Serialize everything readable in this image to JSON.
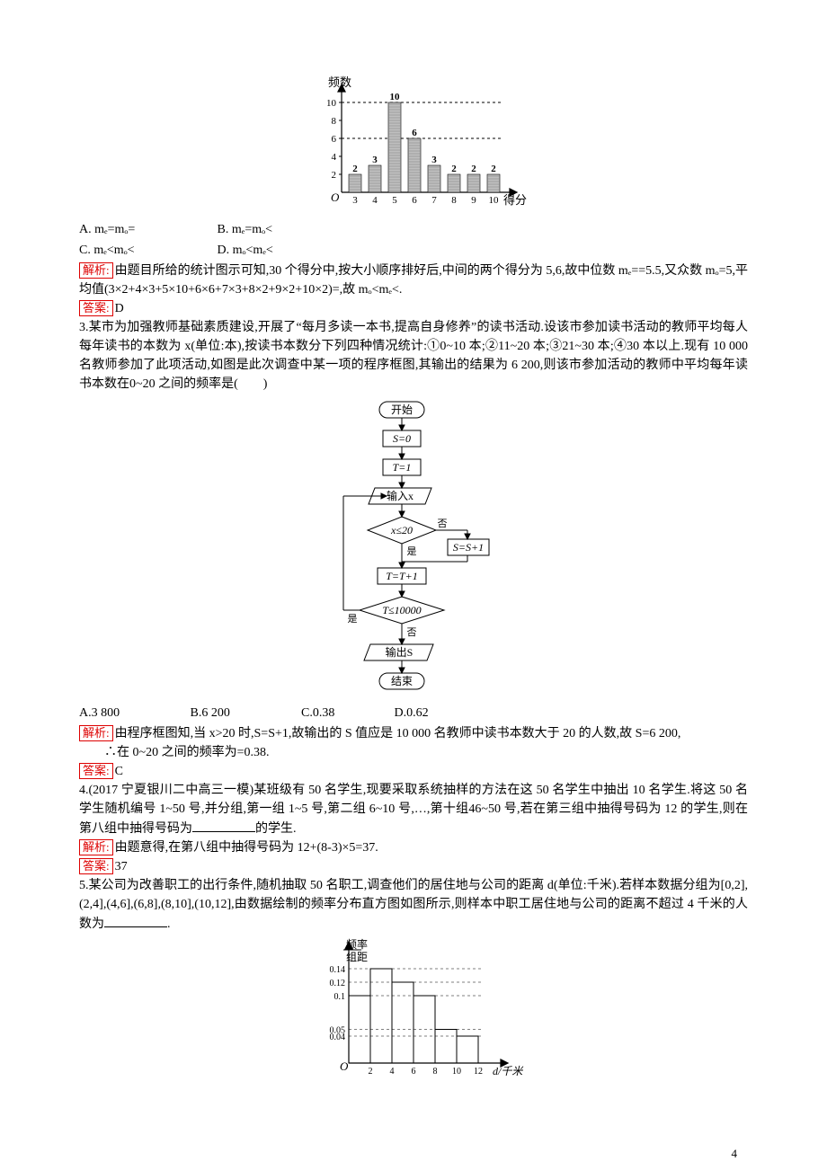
{
  "q2": {
    "chart": {
      "title_y": "频数",
      "title_x": "得分",
      "categories": [
        "3",
        "4",
        "5",
        "6",
        "7",
        "8",
        "9",
        "10"
      ],
      "values": [
        2,
        3,
        10,
        6,
        3,
        2,
        2,
        2
      ],
      "top_labels": [
        "2",
        "3",
        "10",
        "6",
        "3",
        "2",
        "2",
        "2"
      ],
      "yticks": [
        "2",
        "4",
        "6",
        "8",
        "10"
      ],
      "dashed_levels": [
        10,
        6
      ],
      "bar_fill": "#bfbfbf",
      "hatch_fill": "#7e7e7e",
      "axis_color": "#000000",
      "dash_color": "#000000",
      "bg": "#ffffff",
      "ylim": [
        0,
        10
      ]
    },
    "opts": {
      "A": "A. mₑ=mₒ=",
      "B": "B. mₑ=mₒ<",
      "C": "C. mₑ<mₒ<",
      "D": "D. mₒ<mₑ<"
    },
    "jiexi_label": "解析:",
    "jiexi": "由题目所给的统计图示可知,30 个得分中,按大小顺序排好后,中间的两个得分为 5,6,故中位数 mₑ==5.5,又众数 mₒ=5,平均值(3×2+4×3+5×10+6×6+7×3+8×2+9×2+10×2)=,故 mₒ<mₑ<.",
    "ans_label": "答案:",
    "ans": "D"
  },
  "q3": {
    "text": "3.某市为加强教师基础素质建设,开展了“每月多读一本书,提高自身修养”的读书活动.设该市参加读书活动的教师平均每人每年读书的本数为 x(单位:本),按读书本数分下列四种情况统计:①0~10 本;②11~20 本;③21~30 本;④30 本以上.现有 10 000 名教师参加了此项活动,如图是此次调查中某一项的程序框图,其输出的结果为 6 200,则该市参加活动的教师中平均每年读书本数在0~20 之间的频率是(　　)",
    "flow": {
      "start": "开始",
      "s0": "S=0",
      "t1": "T=1",
      "input": "输入x",
      "cond1": "x≤20",
      "yes": "是",
      "no": "否",
      "sinc": "S=S+1",
      "tinc": "T=T+1",
      "cond2": "T≤10000",
      "out": "输出S",
      "end": "结束",
      "line_color": "#000000",
      "bg": "#ffffff"
    },
    "opts": {
      "A": "A.3 800",
      "B": "B.6 200",
      "C": "C.0.38",
      "D": "D.0.62"
    },
    "jiexi_label": "解析:",
    "jiexi": "由程序框图知,当 x>20 时,S=S+1,故输出的 S 值应是 10 000 名教师中读书本数大于 20 的人数,故 S=6 200,",
    "jiexi2": "∴在 0~20 之间的频率为=0.38.",
    "ans_label": "答案:",
    "ans": "C"
  },
  "q4": {
    "text": "4.(2017 宁夏银川二中高三一模)某班级有 50 名学生,现要采取系统抽样的方法在这 50 名学生中抽出 10 名学生.将这 50 名学生随机编号 1~50 号,并分组,第一组 1~5 号,第二组 6~10 号,…,第十组46~50 号,若在第三组中抽得号码为 12 的学生,则在第八组中抽得号码为",
    "text_tail": "的学生.",
    "jiexi_label": "解析:",
    "jiexi": "由题意得,在第八组中抽得号码为 12+(8-3)×5=37.",
    "ans_label": "答案:",
    "ans": "37"
  },
  "q5": {
    "text": "5.某公司为改善职工的出行条件,随机抽取 50 名职工,调查他们的居住地与公司的距离 d(单位:千米).若样本数据分组为[0,2],(2,4],(4,6],(6,8],(8,10],(10,12],由数据绘制的频率分布直方图如图所示,则样本中职工居住地与公司的距离不超过 4 千米的人数为",
    "text_tail": ".",
    "chart": {
      "ylabel": "频率/\n组距",
      "xlabel": "d/千米",
      "xticks": [
        "2",
        "4",
        "6",
        "8",
        "10",
        "12"
      ],
      "yticks": [
        {
          "v": 0.04,
          "l": "0.04"
        },
        {
          "v": 0.05,
          "l": "0.05"
        },
        {
          "v": 0.1,
          "l": "0.1"
        },
        {
          "v": 0.12,
          "l": "0.12"
        },
        {
          "v": 0.14,
          "l": "0.14"
        }
      ],
      "bars": [
        0.1,
        0.14,
        0.12,
        0.1,
        0.05,
        0.04
      ],
      "axis_color": "#000000",
      "bg": "#ffffff",
      "ylim": [
        0,
        0.14
      ]
    }
  },
  "pageno": "4"
}
